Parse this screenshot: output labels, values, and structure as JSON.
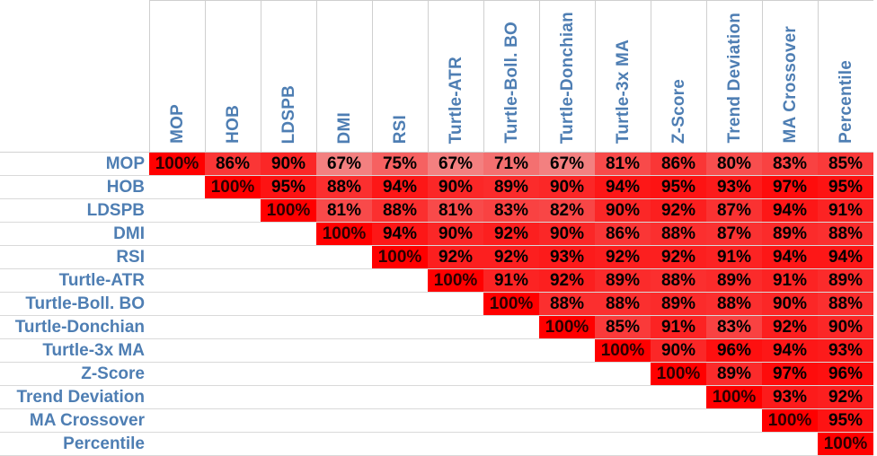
{
  "chart_data": {
    "type": "heatmap",
    "labels": [
      "MOP",
      "HOB",
      "LDSPB",
      "DMI",
      "RSI",
      "Turtle-ATR",
      "Turtle-Boll. BO",
      "Turtle-Donchian",
      "Turtle-3x MA",
      "Z-Score",
      "Trend Deviation",
      "MA Crossover",
      "Percentile"
    ],
    "value_unit": "%",
    "values": [
      [
        100,
        86,
        90,
        67,
        75,
        67,
        71,
        67,
        81,
        86,
        80,
        83,
        85
      ],
      [
        null,
        100,
        95,
        88,
        94,
        90,
        89,
        90,
        94,
        95,
        93,
        97,
        95
      ],
      [
        null,
        null,
        100,
        81,
        88,
        81,
        83,
        82,
        90,
        92,
        87,
        94,
        91
      ],
      [
        null,
        null,
        null,
        100,
        94,
        90,
        92,
        90,
        86,
        88,
        87,
        89,
        88
      ],
      [
        null,
        null,
        null,
        null,
        100,
        92,
        92,
        93,
        92,
        92,
        91,
        94,
        94
      ],
      [
        null,
        null,
        null,
        null,
        null,
        100,
        91,
        92,
        89,
        88,
        89,
        91,
        89
      ],
      [
        null,
        null,
        null,
        null,
        null,
        null,
        100,
        88,
        88,
        89,
        88,
        90,
        88
      ],
      [
        null,
        null,
        null,
        null,
        null,
        null,
        null,
        100,
        85,
        91,
        83,
        92,
        90
      ],
      [
        null,
        null,
        null,
        null,
        null,
        null,
        null,
        null,
        100,
        90,
        96,
        94,
        93
      ],
      [
        null,
        null,
        null,
        null,
        null,
        null,
        null,
        null,
        null,
        100,
        89,
        97,
        96
      ],
      [
        null,
        null,
        null,
        null,
        null,
        null,
        null,
        null,
        null,
        null,
        100,
        93,
        92
      ],
      [
        null,
        null,
        null,
        null,
        null,
        null,
        null,
        null,
        null,
        null,
        null,
        100,
        95
      ],
      [
        null,
        null,
        null,
        null,
        null,
        null,
        null,
        null,
        null,
        null,
        null,
        null,
        100
      ]
    ],
    "color_scale": {
      "low_color": "#f38080",
      "high_color": "#ff0000"
    },
    "label_color": "#4e7eb3"
  }
}
